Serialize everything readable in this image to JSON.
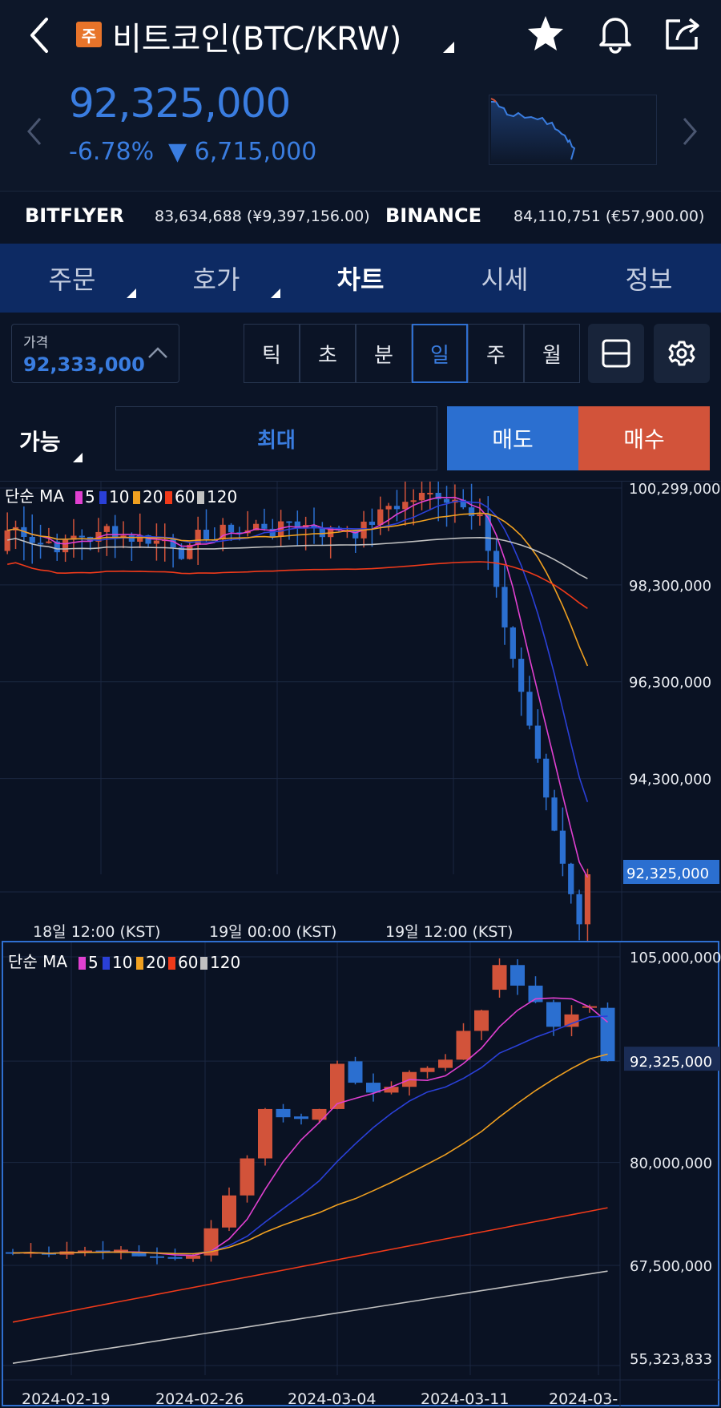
{
  "header": {
    "badge": "주",
    "title": "비트코인(BTC/KRW)",
    "price": "92,325,000",
    "change_pct": "-6.78%",
    "change_abs": "▼ 6,715,000"
  },
  "exchanges": [
    {
      "name": "BITFLYER",
      "value": "83,634,688 (¥9,397,156.00)"
    },
    {
      "name": "BINANCE",
      "value": "84,110,751 (€57,900.00)"
    }
  ],
  "tabs": [
    {
      "label": "주문",
      "menu": true
    },
    {
      "label": "호가",
      "menu": true
    },
    {
      "label": "차트",
      "active": true
    },
    {
      "label": "시세"
    },
    {
      "label": "정보"
    }
  ],
  "price_box": {
    "label": "가격",
    "value": "92,333,000"
  },
  "intervals": [
    "틱",
    "초",
    "분",
    "일",
    "주",
    "월"
  ],
  "selected_interval": "일",
  "order": {
    "available": "가능",
    "max": "최대",
    "sell": "매도",
    "buy": "매수"
  },
  "colors": {
    "up": "#d2533a",
    "down": "#2b6fd0",
    "ma5": "#e040d0",
    "ma10": "#2a40d8",
    "ma20": "#f0a020",
    "ma60": "#f03a1a",
    "ma120": "#c0c0c0"
  },
  "legend": {
    "prefix": "단순 MA",
    "items": [
      "5",
      "10",
      "20",
      "60",
      "120"
    ]
  },
  "chart_data": [
    {
      "type": "candlestick",
      "y_ticks": [
        "100,299,000",
        "98,300,000",
        "96,300,000",
        "94,300,000"
      ],
      "x_ticks": [
        "18일 12:00 (KST)",
        "19일 00:00 (KST)",
        "19일 12:00 (KST)"
      ],
      "current_price_label": "92,325,000",
      "ylim": [
        92325000,
        100299000
      ]
    },
    {
      "type": "candlestick",
      "y_ticks": [
        "105,000,000",
        "80,000,000",
        "67,500,000",
        "55,323,833"
      ],
      "x_ticks": [
        "2024-02-19",
        "2024-02-26",
        "2024-03-04",
        "2024-03-11",
        "2024-03-"
      ],
      "current_price_label": "92,325,000",
      "ylim": [
        55323833,
        105000000
      ]
    }
  ]
}
